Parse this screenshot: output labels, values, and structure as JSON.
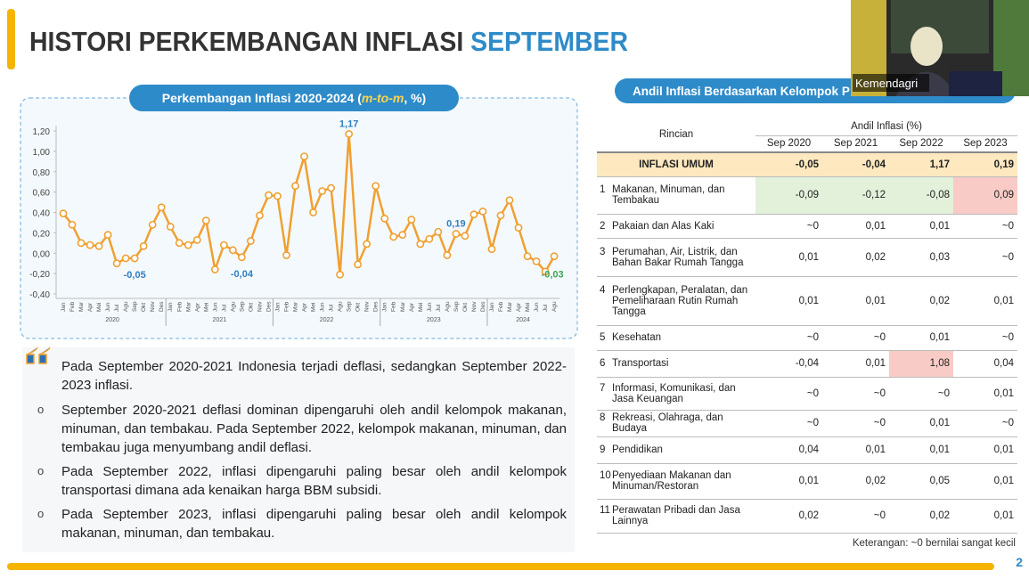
{
  "header": {
    "title": "HISTORI PERKEMBANGAN INFLASI ",
    "title_highlight": "SEPTEMBER"
  },
  "chart_data": {
    "type": "line",
    "title": "Perkembangan Inflasi 2020-2024 (",
    "title_emphasis": "m-to-m",
    "title_end": ", %)",
    "categories": [
      "Jan",
      "Feb",
      "Mar",
      "Apr",
      "Mei",
      "Jun",
      "Jul",
      "Agu",
      "Sep",
      "Okt",
      "Nov",
      "Des",
      "Jan",
      "Feb",
      "Mar",
      "Apr",
      "Mei",
      "Jun",
      "Jul",
      "Agu",
      "Sep",
      "Okt",
      "Nov",
      "Des",
      "Jan",
      "Feb",
      "Mar",
      "Apr",
      "Mei",
      "Jun",
      "Jul",
      "Agu",
      "Sep",
      "Okt",
      "Nov",
      "Des",
      "Jan",
      "Feb",
      "Mar",
      "Apr",
      "Mei",
      "Jun",
      "Jul",
      "Agu",
      "Sep",
      "Okt",
      "Nov",
      "Des",
      "Jan",
      "Feb",
      "Mar",
      "Apr",
      "Mei",
      "Jun",
      "Jul",
      "Agu"
    ],
    "year_labels": [
      "2020",
      "2021",
      "2022",
      "2023",
      "2024"
    ],
    "series": [
      {
        "color": "#f0a030",
        "values": [
          0.39,
          0.28,
          0.1,
          0.08,
          0.07,
          0.18,
          -0.1,
          -0.05,
          -0.05,
          0.07,
          0.28,
          0.45,
          0.26,
          0.1,
          0.08,
          0.13,
          0.32,
          -0.16,
          0.08,
          0.03,
          -0.04,
          0.12,
          0.37,
          0.57,
          0.56,
          -0.02,
          0.66,
          0.95,
          0.4,
          0.61,
          0.64,
          -0.21,
          1.17,
          -0.11,
          0.09,
          0.66,
          0.34,
          0.16,
          0.18,
          0.33,
          0.09,
          0.14,
          0.21,
          -0.02,
          0.19,
          0.17,
          0.38,
          0.41,
          0.04,
          0.37,
          0.52,
          0.25,
          -0.03,
          -0.08,
          -0.18,
          -0.03
        ],
        "value_labels": [
          null,
          null,
          null,
          null,
          null,
          null,
          null,
          null,
          "-0,05",
          null,
          null,
          null,
          null,
          null,
          null,
          null,
          null,
          null,
          null,
          null,
          "-0,04",
          null,
          null,
          null,
          null,
          null,
          null,
          null,
          null,
          null,
          null,
          null,
          "1,17",
          null,
          null,
          null,
          null,
          null,
          null,
          null,
          null,
          null,
          null,
          null,
          "0,19",
          null,
          null,
          null,
          null,
          null,
          null,
          null,
          null,
          null,
          null,
          "-0,03"
        ]
      }
    ],
    "ylim": [
      -0.4,
      1.2
    ],
    "yticks": [
      {
        "value": 1.2,
        "label": "1,20"
      },
      {
        "value": 1.0,
        "label": "1,00"
      },
      {
        "value": 0.8,
        "label": "0,80"
      },
      {
        "value": 0.6,
        "label": "0,60"
      },
      {
        "value": 0.4,
        "label": "0,40"
      },
      {
        "value": 0.2,
        "label": "0,20"
      },
      {
        "value": 0,
        "label": "0,00"
      },
      {
        "value": -0.2,
        "label": "-0,20"
      },
      {
        "value": -0.4,
        "label": "-0,40"
      }
    ]
  },
  "summary": {
    "intro": "Pada September 2020-2021 Indonesia terjadi deflasi, sedangkan September 2022-2023 inflasi.",
    "bullet_marker": "o",
    "bullets": [
      "September 2020-2021 deflasi dominan dipengaruhi oleh andil kelompok makanan, minuman, dan tembakau. Pada September 2022, kelompok makanan, minuman, dan tembakau juga menyumbang andil deflasi.",
      "Pada September 2022, inflasi dipengaruhi paling besar oleh andil kelompok transportasi dimana ada kenaikan harga BBM subsidi.",
      "Pada September 2023, inflasi dipengaruhi paling besar oleh andil kelompok makanan, minuman, dan tembakau."
    ]
  },
  "table": {
    "title": "Andil Inflasi Berdasarkan Kelompok P",
    "header": {
      "rincian": "Rincian",
      "group": "Andil Inflasi (%)",
      "columns": [
        "Sep 2020",
        "Sep 2021",
        "Sep 2022",
        "Sep 2023"
      ]
    },
    "total": {
      "label": "INFLASI UMUM",
      "values": [
        "-0,05",
        "-0,04",
        "1,17",
        "0,19"
      ]
    },
    "rows": [
      {
        "no": "1",
        "label": "Makanan, Minuman, dan Tembakau",
        "values": [
          "-0,09",
          "-0,12",
          "-0,08",
          "0,09"
        ]
      },
      {
        "no": "2",
        "label": "Pakaian dan Alas Kaki",
        "values": [
          "~0",
          "0,01",
          "0,01",
          "~0"
        ]
      },
      {
        "no": "3",
        "label": "Perumahan, Air, Listrik, dan Bahan Bakar Rumah Tangga",
        "values": [
          "0,01",
          "0,02",
          "0,03",
          "~0"
        ]
      },
      {
        "no": "4",
        "label": "Perlengkapan, Peralatan, dan Pemeliharaan Rutin Rumah Tangga",
        "values": [
          "0,01",
          "0,01",
          "0,02",
          "0,01"
        ]
      },
      {
        "no": "5",
        "label": "Kesehatan",
        "values": [
          "~0",
          "~0",
          "0,01",
          "~0"
        ]
      },
      {
        "no": "6",
        "label": "Transportasi",
        "values": [
          "-0,04",
          "0,01",
          "1,08",
          "0,04"
        ]
      },
      {
        "no": "7",
        "label": "Informasi, Komunikasi, dan Jasa Keuangan",
        "values": [
          "~0",
          "~0",
          "~0",
          "0,01"
        ]
      },
      {
        "no": "8",
        "label": "Rekreasi, Olahraga, dan Budaya",
        "values": [
          "~0",
          "~0",
          "0,01",
          "~0"
        ]
      },
      {
        "no": "9",
        "label": "Pendidikan",
        "values": [
          "0,04",
          "0,01",
          "0,01",
          "0,01"
        ]
      },
      {
        "no": "10",
        "label": "Penyediaan Makanan dan Minuman/Restoran",
        "values": [
          "0,01",
          "0,02",
          "0,05",
          "0,01"
        ]
      },
      {
        "no": "11",
        "label": "Perawatan Pribadi dan Jasa Lainnya",
        "values": [
          "0,02",
          "~0",
          "0,02",
          "0,01"
        ]
      }
    ],
    "note": "Keterangan: ~0 bernilai sangat kecil"
  },
  "webcam": {
    "label": "Kemendagri"
  },
  "footer": {
    "page": "2"
  }
}
